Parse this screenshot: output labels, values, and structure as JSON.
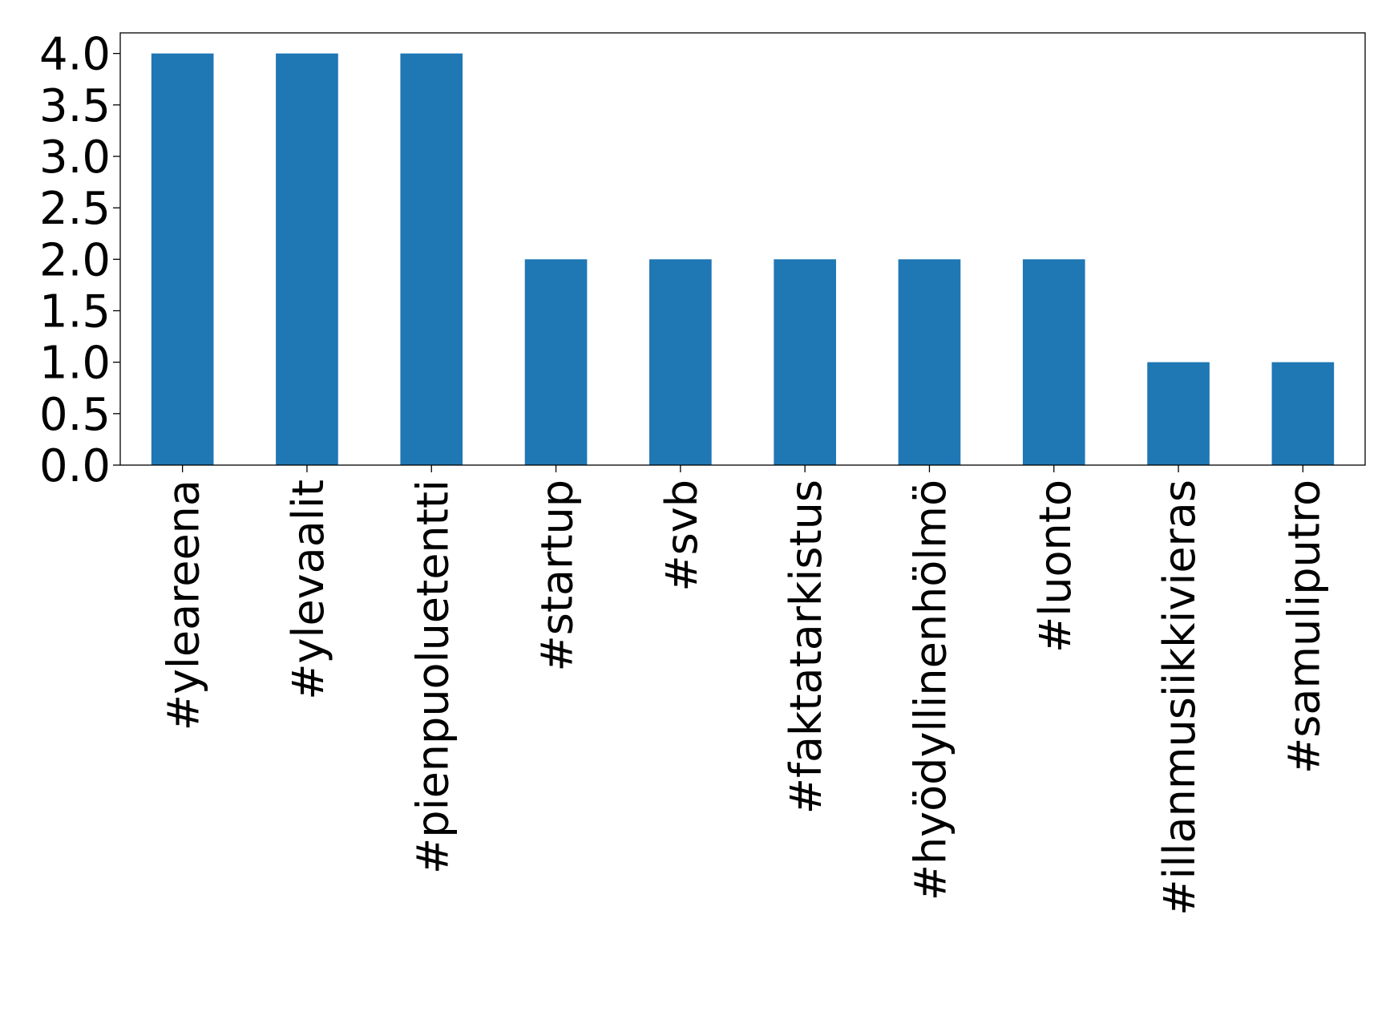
{
  "chart_data": {
    "type": "bar",
    "title": "",
    "xlabel": "",
    "ylabel": "",
    "categories": [
      "#yleareena",
      "#ylevaalit",
      "#pienpuoluetentti",
      "#startup",
      "#svb",
      "#faktatarkistus",
      "#hyödyllinenhölmö",
      "#luonto",
      "#illanmusiikkivieras",
      "#samuliputro"
    ],
    "values": [
      4,
      4,
      4,
      2,
      2,
      2,
      2,
      2,
      1,
      1
    ],
    "ylim": [
      0,
      4.2
    ],
    "yticks": [
      0.0,
      0.5,
      1.0,
      1.5,
      2.0,
      2.5,
      3.0,
      3.5,
      4.0
    ],
    "ytick_labels": [
      "0.0",
      "0.5",
      "1.0",
      "1.5",
      "2.0",
      "2.5",
      "3.0",
      "3.5",
      "4.0"
    ],
    "grid": false,
    "legend": "none",
    "bar_color": "#1f77b4"
  }
}
